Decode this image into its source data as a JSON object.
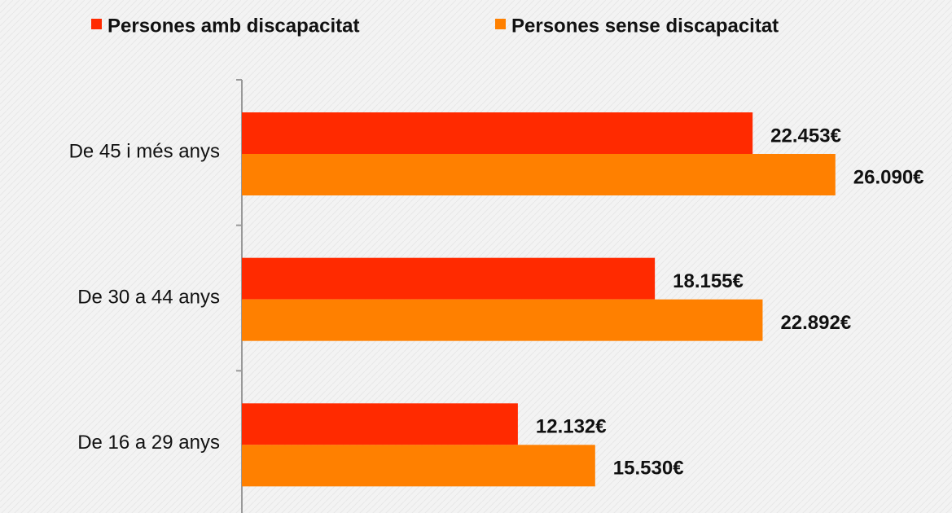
{
  "chart_data": {
    "type": "hbar",
    "categories": [
      "De 45 i més anys",
      "De 30 a 44 anys",
      "De 16 a 29 anys"
    ],
    "series": [
      {
        "name": "Persones amb discapacitat",
        "color": "#ff2a00",
        "values": [
          22453,
          18155,
          12132
        ],
        "value_labels": [
          "22.453€",
          "18.155€",
          "12.132€"
        ]
      },
      {
        "name": "Persones sense discapacitat",
        "color": "#ff8000",
        "values": [
          26090,
          22892,
          15530
        ],
        "value_labels": [
          "26.090€",
          "22.892€",
          "15.530€"
        ]
      }
    ],
    "xlim": [
      0,
      30000
    ],
    "legend": "top"
  }
}
